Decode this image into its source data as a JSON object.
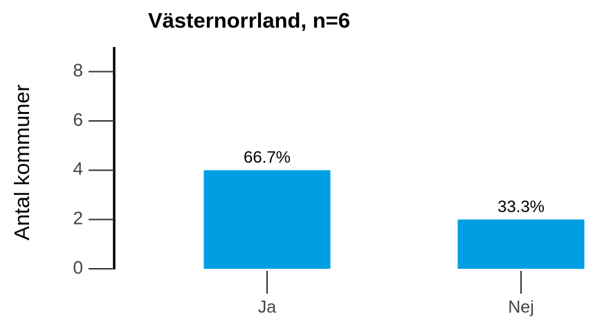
{
  "chart_data": {
    "type": "bar",
    "title": "Västernorrland, n=6",
    "ylabel": "Antal kommuner",
    "categories": [
      "Ja",
      "Nej"
    ],
    "values": [
      4,
      2
    ],
    "bar_labels": [
      "66.7%",
      "33.3%"
    ],
    "color": "#009fe3",
    "ylim": [
      0,
      9
    ],
    "yticks": [
      0,
      2,
      4,
      6,
      8
    ],
    "grid": false
  }
}
